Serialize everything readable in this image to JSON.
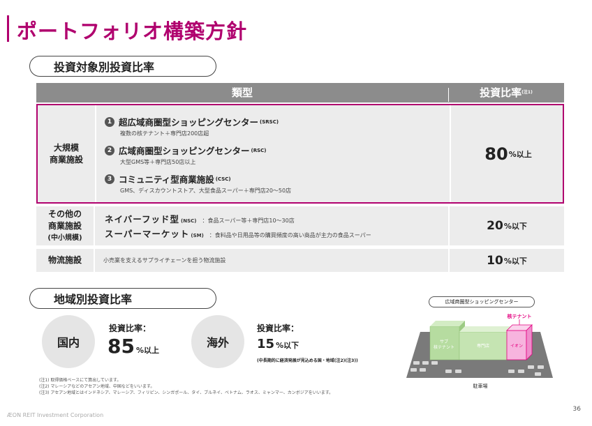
{
  "page": {
    "title": "ポートフォリオ構築方針",
    "page_number": "36",
    "footer_brand": "ÆON REIT Investment Corporation",
    "accent_color": "#b0006e"
  },
  "section1": {
    "heading": "投資対象別投資比率",
    "table": {
      "header_type": "類型",
      "header_ratio": "投資比率",
      "header_ratio_note": "(注1)",
      "rows": [
        {
          "category_line1": "大規模",
          "category_line2": "商業施設",
          "items": [
            {
              "num": "1",
              "title": "超広域商圏型ショッピングセンター",
              "abbr": "(SRSC)",
              "sub": "複数の核テナント＋専門店200店超"
            },
            {
              "num": "2",
              "title": "広域商圏型ショッピングセンター",
              "abbr": "(RSC)",
              "sub": "大型GMS等＋専門店50店以上"
            },
            {
              "num": "3",
              "title": "コミュニティ型商業施設",
              "abbr": "(CSC)",
              "sub": "GMS、ディスカウントストア、大型食品スーパー＋専門店20～50店"
            }
          ],
          "ratio_value": "80",
          "ratio_unit": "%以上"
        },
        {
          "category_line1": "その他の",
          "category_line2": "商業施設",
          "category_line3": "(中小規模)",
          "items": [
            {
              "title": "ネイバーフッド型",
              "abbr": "(NSC)",
              "desc": "：食品スーパー等＋専門店10～30店"
            },
            {
              "title": "スーパーマーケット",
              "abbr": "(SM)",
              "desc": "：食料品や日用品等の購買頻度の高い商品が主力の食品スーパー"
            }
          ],
          "ratio_value": "20",
          "ratio_unit": "%以下"
        },
        {
          "category_line1": "物流施設",
          "desc": "小売業を支えるサプライチェーンを担う物流施設",
          "ratio_value": "10",
          "ratio_unit": "%以下"
        }
      ]
    }
  },
  "section2": {
    "heading": "地域別投資比率",
    "domestic": {
      "label": "国内",
      "ratio_label": "投資比率：",
      "ratio_value": "85",
      "ratio_unit": "%以上"
    },
    "overseas": {
      "label": "海外",
      "ratio_label": "投資比率：",
      "ratio_value": "15",
      "ratio_unit": "%以下",
      "note": "(中長期的に経済発展が見込める国・地域(注2)(注3))"
    }
  },
  "illustration": {
    "title": "広域商圏型ショッピングセンター",
    "core_tenant_label": "核テナント",
    "sub_tenant_label_1": "サブ",
    "sub_tenant_label_2": "核テナント",
    "specialty_label": "専門店",
    "aeon_label": "イオン",
    "parking_label": "駐車場",
    "colors": {
      "green": "#b6dca0",
      "pink": "#f7b4de",
      "magenta": "#e4007f",
      "parking": "#7a7a7a"
    }
  },
  "notes": [
    "(注1) 取得価格ベースにて算出しています。",
    "(注2) マレーシアなどのアセアン地域、中国などをいいます。",
    "(注3) アセアン地域とはインドネシア、マレーシア、フィリピン、シンガポール、タイ、ブルネイ、ベトナム、ラオス、ミャンマー、カンボジアをいいます。"
  ]
}
